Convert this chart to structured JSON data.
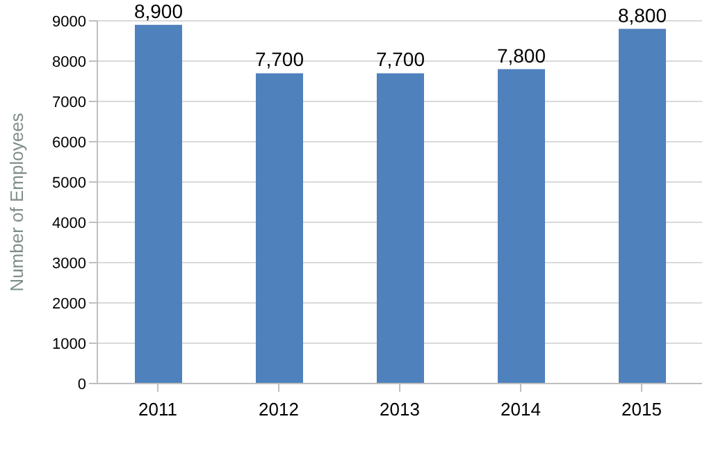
{
  "chart_data": {
    "type": "bar",
    "ylabel": "Number of Employees",
    "categories": [
      "2011",
      "2012",
      "2013",
      "2014",
      "2015"
    ],
    "values": [
      8900,
      7700,
      7700,
      7800,
      8800
    ],
    "color": "#4f81bd",
    "value_labels": [
      "8,900",
      "7,700",
      "7,700",
      "7,800",
      "8,800"
    ],
    "ylim": [
      0,
      9000
    ],
    "yticks": [
      0,
      1000,
      2000,
      3000,
      4000,
      5000,
      6000,
      7000,
      8000,
      9000
    ],
    "grid": "y"
  }
}
